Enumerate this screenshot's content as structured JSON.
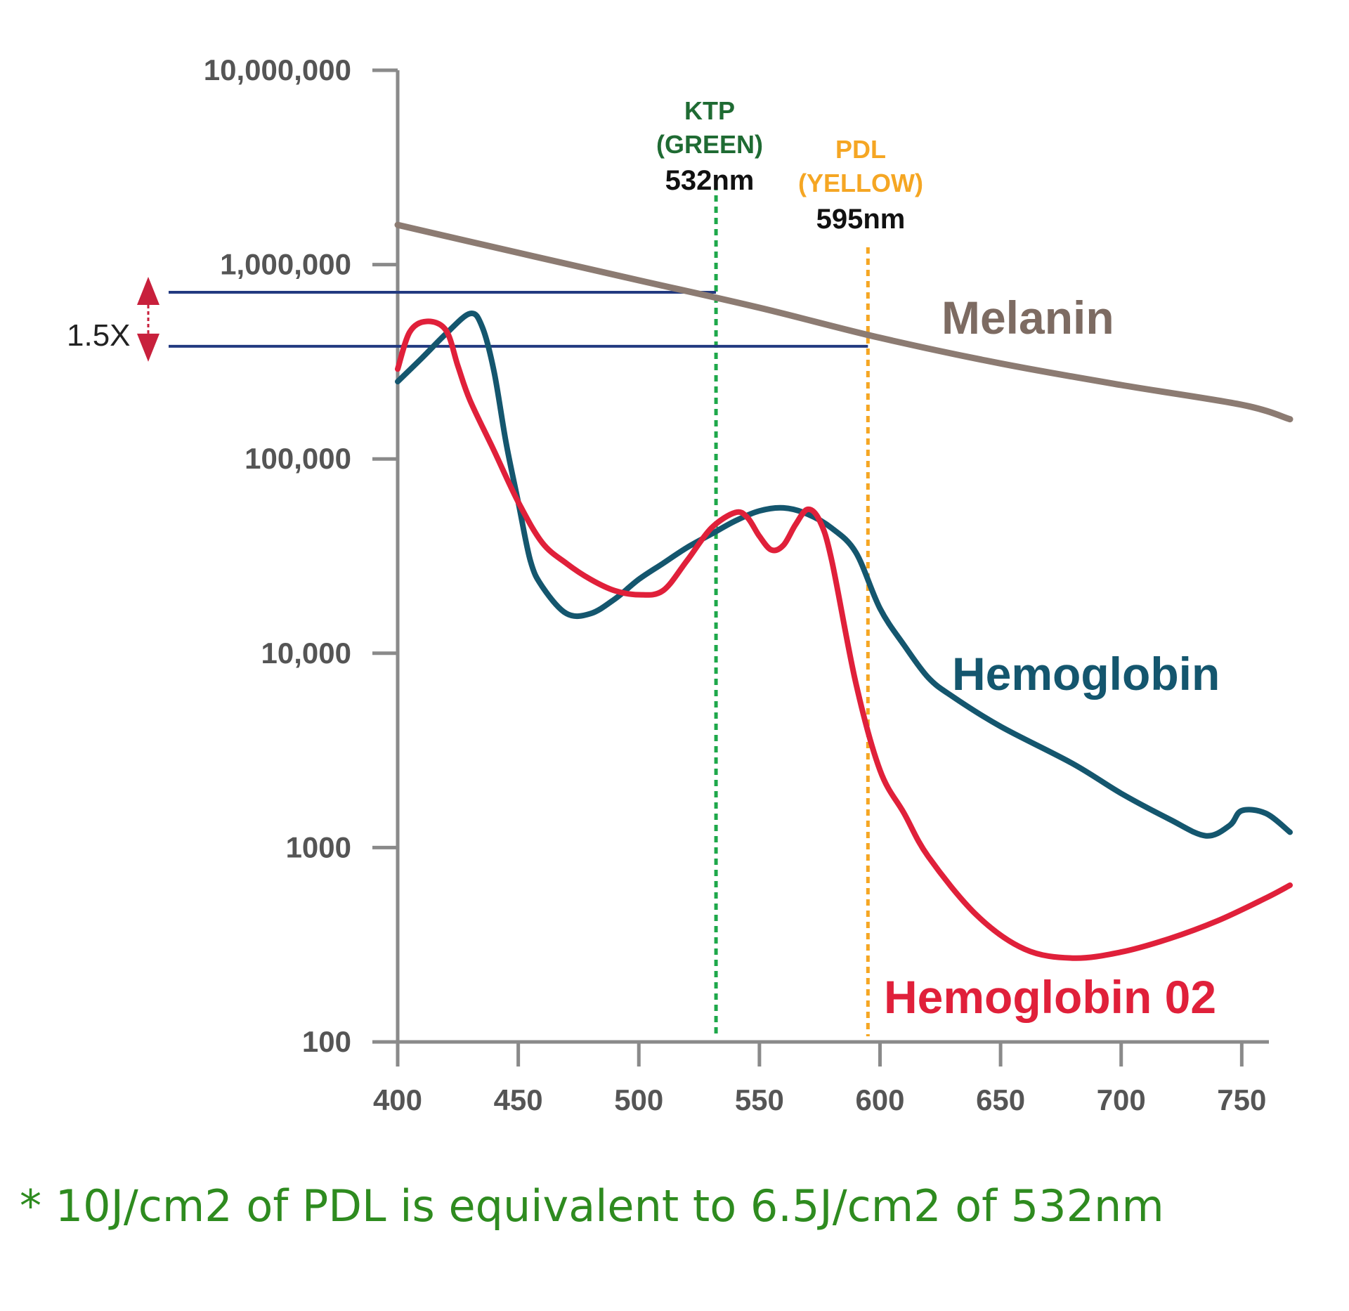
{
  "chart_data": {
    "type": "line",
    "y_scale": "log",
    "ylim": [
      100,
      10000000
    ],
    "xlim": [
      400,
      770
    ],
    "y_ticks": [
      {
        "value": 10000000,
        "label": "10,000,000"
      },
      {
        "value": 1000000,
        "label": "1,000,000"
      },
      {
        "value": 100000,
        "label": "100,000"
      },
      {
        "value": 10000,
        "label": "10,000"
      },
      {
        "value": 1000,
        "label": "1000"
      },
      {
        "value": 100,
        "label": "100"
      }
    ],
    "x_ticks": [
      {
        "value": 400,
        "label": "400"
      },
      {
        "value": 450,
        "label": "450"
      },
      {
        "value": 500,
        "label": "500"
      },
      {
        "value": 550,
        "label": "550"
      },
      {
        "value": 600,
        "label": "600"
      },
      {
        "value": 650,
        "label": "650"
      },
      {
        "value": 700,
        "label": "700"
      },
      {
        "value": 750,
        "label": "750"
      }
    ],
    "series": [
      {
        "name": "Melanin",
        "color": "#8c7b72",
        "x": [
          400,
          450,
          500,
          550,
          600,
          650,
          700,
          750,
          770
        ],
        "y": [
          1600000,
          1150000,
          830000,
          600000,
          420000,
          310000,
          240000,
          190000,
          160000
        ]
      },
      {
        "name": "Hemoglobin",
        "color": "#14566e",
        "x": [
          400,
          410,
          420,
          430,
          435,
          440,
          445,
          450,
          455,
          460,
          470,
          480,
          490,
          500,
          510,
          520,
          530,
          540,
          550,
          560,
          570,
          580,
          590,
          600,
          610,
          620,
          630,
          650,
          680,
          700,
          720,
          735,
          745,
          750,
          760,
          770
        ],
        "y": [
          250000,
          330000,
          440000,
          560000,
          480000,
          280000,
          120000,
          60000,
          30000,
          22000,
          16000,
          16000,
          19000,
          24000,
          29000,
          35000,
          41000,
          48000,
          54000,
          56000,
          52000,
          44000,
          33000,
          17000,
          11000,
          7500,
          6000,
          4200,
          2700,
          1900,
          1400,
          1150,
          1300,
          1550,
          1500,
          1200
        ]
      },
      {
        "name": "Hemoglobin 02",
        "color": "#e0203a",
        "x": [
          400,
          405,
          412,
          420,
          425,
          430,
          440,
          450,
          460,
          470,
          480,
          490,
          500,
          510,
          520,
          530,
          540,
          545,
          550,
          555,
          560,
          565,
          570,
          575,
          580,
          590,
          600,
          610,
          620,
          640,
          660,
          680,
          700,
          720,
          740,
          760,
          770
        ],
        "y": [
          290000,
          450000,
          510000,
          460000,
          300000,
          200000,
          110000,
          60000,
          37000,
          29000,
          24000,
          21000,
          20000,
          21000,
          30000,
          44000,
          53000,
          50000,
          40000,
          34000,
          36000,
          46000,
          55000,
          48000,
          30000,
          7000,
          2500,
          1500,
          900,
          450,
          300,
          270,
          290,
          340,
          420,
          550,
          640
        ]
      }
    ],
    "reference_lines": [
      {
        "name": "KTP",
        "x": 532,
        "color": "#1ea84a"
      },
      {
        "name": "PDL",
        "x": 595,
        "color": "#f5a623"
      }
    ],
    "ratio_lines": [
      {
        "y": 720000,
        "x_end": 532
      },
      {
        "y": 380000,
        "x_end": 595
      }
    ]
  },
  "labels": {
    "ktp_line1": "KTP",
    "ktp_line2": "(GREEN)",
    "ktp_wl": "532nm",
    "pdl_line1": "PDL",
    "pdl_line2": "(YELLOW)",
    "pdl_wl": "595nm",
    "melanin": "Melanin",
    "hemoglobin": "Hemoglobin",
    "hemoglobin_o2": "Hemoglobin 02",
    "ratio": "1.5X"
  },
  "colors": {
    "axis": "#8a8a8a",
    "ktp_label": "#1f6b33",
    "pdl_label": "#f5a623",
    "ratio_line": "#223a80",
    "ratio_arrow": "#c8203c"
  },
  "footnote": "* 10J/cm2 of PDL is equivalent to 6.5J/cm2 of 532nm"
}
